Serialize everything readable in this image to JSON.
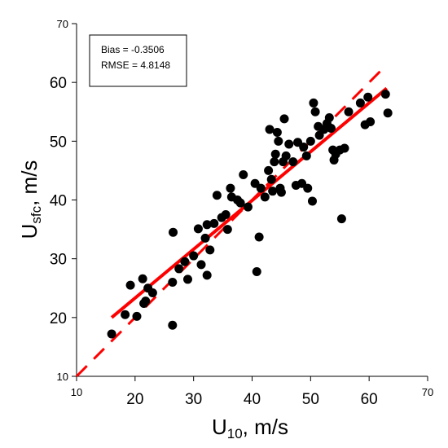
{
  "chart_data": {
    "type": "scatter",
    "title": "",
    "xlabel": {
      "main": "U",
      "sub": "10",
      "suffix": ", m/s"
    },
    "ylabel": {
      "main": "U",
      "sub": "sfc",
      "suffix": ", m/s"
    },
    "xlim": [
      10,
      70
    ],
    "ylim": [
      10,
      70
    ],
    "xticks": [
      10,
      20,
      30,
      40,
      50,
      60,
      70
    ],
    "yticks": [
      10,
      20,
      30,
      40,
      50,
      60,
      70
    ],
    "grid": false,
    "annotation": [
      "Bias = -0.3506",
      "RMSE = 4.8148"
    ],
    "colors": {
      "points": "#000000",
      "fit": "#ff0000",
      "reference": "#ff0000"
    },
    "fit_line": {
      "x": [
        16,
        63
      ],
      "y": [
        20,
        59
      ]
    },
    "reference_line": {
      "x": [
        10,
        63
      ],
      "y": [
        10,
        63
      ]
    },
    "points": [
      [
        16.0,
        17.2
      ],
      [
        18.3,
        20.5
      ],
      [
        19.2,
        25.5
      ],
      [
        20.3,
        20.2
      ],
      [
        21.3,
        26.6
      ],
      [
        21.5,
        22.4
      ],
      [
        21.8,
        22.8
      ],
      [
        22.2,
        25.0
      ],
      [
        23.0,
        24.2
      ],
      [
        26.4,
        26.0
      ],
      [
        26.5,
        34.5
      ],
      [
        26.4,
        18.7
      ],
      [
        27.5,
        28.3
      ],
      [
        28.5,
        29.5
      ],
      [
        29.0,
        26.5
      ],
      [
        30.0,
        30.5
      ],
      [
        30.8,
        35.1
      ],
      [
        31.3,
        29.0
      ],
      [
        32.0,
        33.5
      ],
      [
        32.3,
        27.2
      ],
      [
        32.3,
        35.8
      ],
      [
        32.8,
        31.5
      ],
      [
        33.5,
        36.0
      ],
      [
        34.0,
        40.8
      ],
      [
        34.8,
        37.0
      ],
      [
        35.5,
        37.5
      ],
      [
        35.8,
        35.0
      ],
      [
        36.3,
        42.0
      ],
      [
        36.5,
        40.5
      ],
      [
        37.5,
        40.0
      ],
      [
        38.0,
        39.5
      ],
      [
        38.5,
        44.3
      ],
      [
        39.3,
        38.8
      ],
      [
        40.5,
        42.8
      ],
      [
        40.8,
        27.8
      ],
      [
        41.2,
        33.7
      ],
      [
        41.5,
        42.0
      ],
      [
        42.2,
        40.5
      ],
      [
        42.8,
        45.0
      ],
      [
        43.0,
        52.0
      ],
      [
        43.3,
        43.5
      ],
      [
        43.5,
        41.5
      ],
      [
        43.8,
        46.5
      ],
      [
        44.0,
        47.8
      ],
      [
        44.3,
        51.5
      ],
      [
        44.5,
        50.0
      ],
      [
        44.8,
        42.0
      ],
      [
        45.0,
        41.3
      ],
      [
        45.3,
        46.5
      ],
      [
        45.5,
        53.8
      ],
      [
        45.8,
        47.5
      ],
      [
        46.3,
        49.5
      ],
      [
        47.0,
        46.5
      ],
      [
        47.5,
        42.5
      ],
      [
        47.8,
        49.8
      ],
      [
        48.5,
        42.8
      ],
      [
        48.8,
        49.0
      ],
      [
        49.3,
        47.5
      ],
      [
        49.5,
        42.0
      ],
      [
        50.0,
        50.0
      ],
      [
        50.3,
        39.8
      ],
      [
        50.5,
        56.5
      ],
      [
        50.8,
        55.0
      ],
      [
        51.3,
        52.5
      ],
      [
        51.5,
        51.0
      ],
      [
        52.3,
        52.0
      ],
      [
        52.8,
        53.0
      ],
      [
        53.2,
        54.0
      ],
      [
        53.5,
        52.2
      ],
      [
        53.8,
        48.5
      ],
      [
        54.0,
        46.8
      ],
      [
        54.3,
        47.8
      ],
      [
        55.0,
        48.5
      ],
      [
        55.3,
        36.8
      ],
      [
        55.8,
        48.8
      ],
      [
        56.5,
        55.0
      ],
      [
        58.5,
        56.5
      ],
      [
        59.3,
        52.8
      ],
      [
        59.8,
        57.5
      ],
      [
        60.2,
        53.3
      ],
      [
        62.8,
        58.0
      ],
      [
        63.2,
        54.8
      ]
    ]
  }
}
